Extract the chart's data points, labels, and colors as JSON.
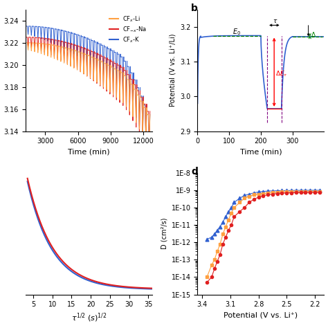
{
  "panel_a": {
    "colors": {
      "Li": "#FFA040",
      "Na": "#E02020",
      "K": "#3060D0"
    },
    "xlabel": "Time (min)",
    "xlim": [
      1200,
      12800
    ],
    "xticks": [
      3000,
      6000,
      9000,
      12000
    ],
    "ylim": [
      3.14,
      3.25
    ],
    "n_steps": 38,
    "t_start": 1200,
    "t_end": 12600
  },
  "panel_b": {
    "color": "#3060D0",
    "ylabel": "Potential (V vs. Li⁺/Li)",
    "xlabel": "Time (min)",
    "xlim": [
      0,
      400
    ],
    "xticks": [
      0,
      100,
      200,
      300
    ],
    "ylim": [
      2.9,
      3.25
    ],
    "yticks": [
      2.9,
      3.0,
      3.1,
      3.2
    ],
    "E0": 3.175,
    "E_bottom": 2.965
  },
  "panel_c": {
    "xlabel": "τ¹⁄² (s)¹⁄²",
    "xlim": [
      3,
      36
    ],
    "xticks": [
      5,
      10,
      15,
      20,
      25,
      30,
      35
    ],
    "colors": {
      "Na": "#E02020",
      "K": "#3060D0"
    }
  },
  "panel_d": {
    "xlabel": "Potential (V vs. Li⁺)",
    "ylabel": "D (cm²/s)",
    "xlim": [
      3.45,
      2.1
    ],
    "xticks": [
      3.4,
      3.1,
      2.8,
      2.5,
      2.2
    ],
    "ylim_log": [
      -15,
      -8
    ],
    "colors": {
      "Li": "#FFA040",
      "Na": "#E02020",
      "K": "#3060D0"
    },
    "markers": {
      "Li": "s",
      "Na": "o",
      "K": "^"
    }
  }
}
